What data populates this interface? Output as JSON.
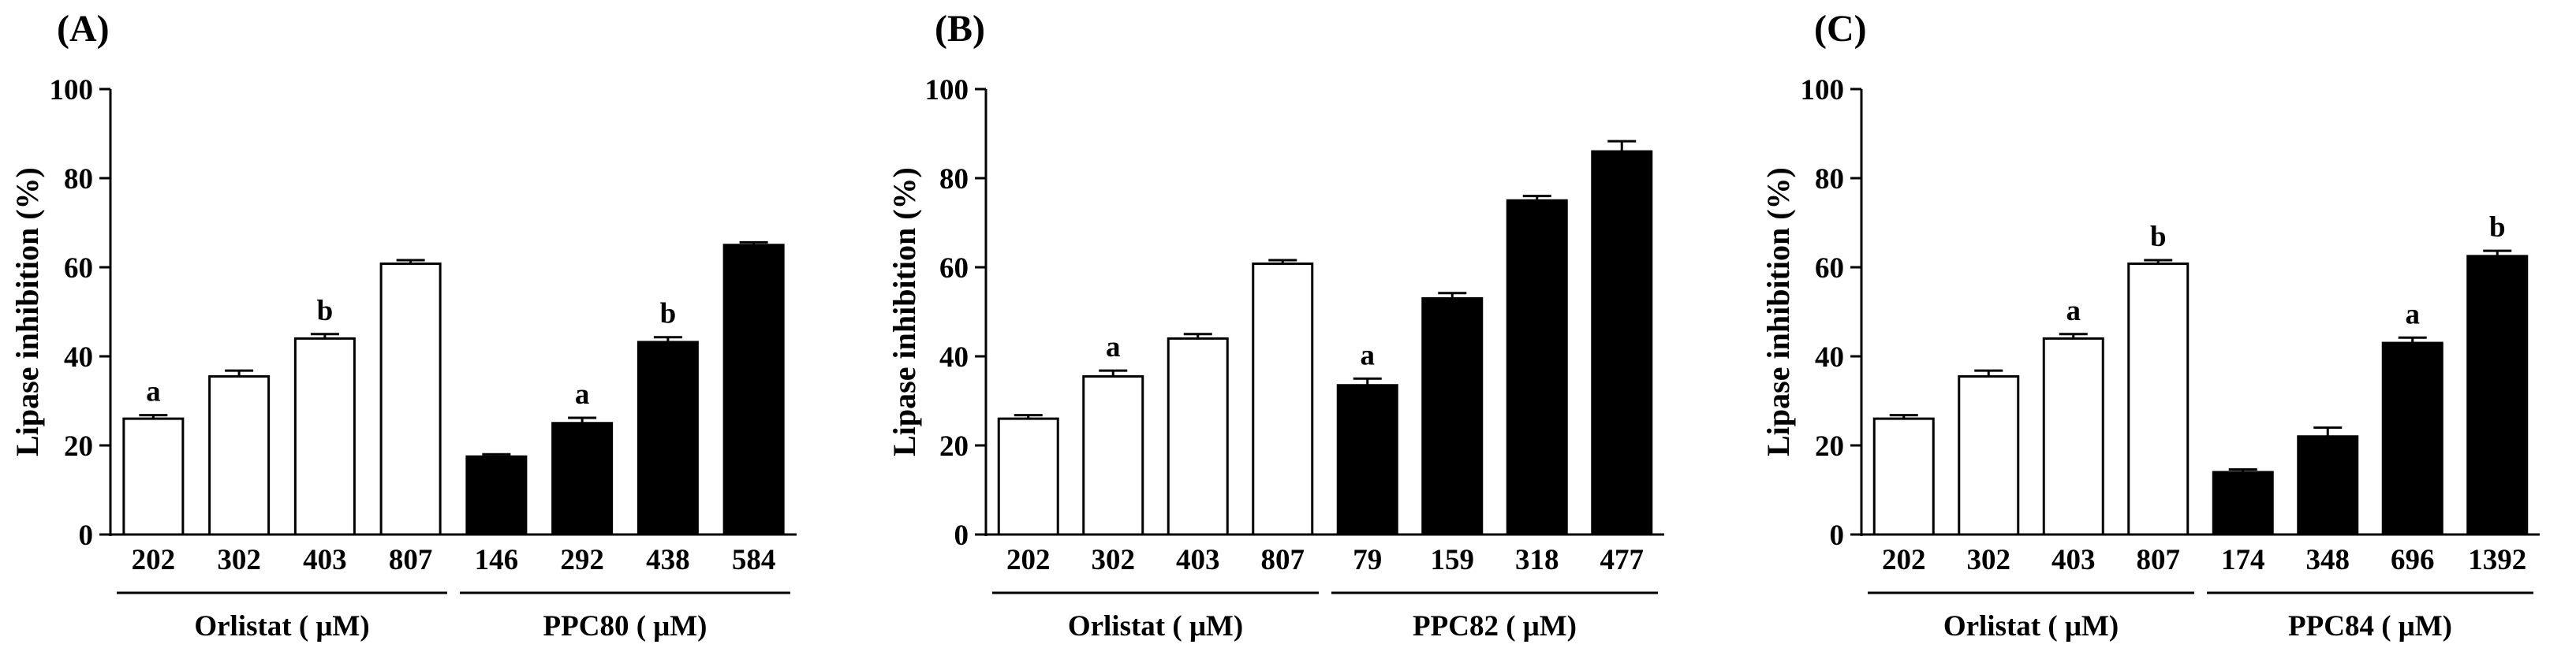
{
  "colors": {
    "open_bar": "#ffffff",
    "filled_bar": "#000000",
    "stroke": "#000000"
  },
  "chart_data": [
    {
      "type": "bar",
      "panel_label": "(A)",
      "ylabel": "Lipase inhibition (%)",
      "ylim": [
        0,
        100
      ],
      "yticks": [
        "0",
        "20",
        "40",
        "60",
        "80",
        "100"
      ],
      "categories": [
        "202",
        "302",
        "403",
        "807",
        "146",
        "292",
        "438",
        "584"
      ],
      "values": [
        26,
        35.5,
        44,
        60.8,
        17.5,
        25,
        43.2,
        65
      ],
      "errors": [
        0.8,
        1.3,
        1.0,
        0.8,
        0.5,
        1.2,
        1.1,
        0.6
      ],
      "significance": [
        "a",
        "",
        "b",
        "",
        "",
        "a",
        "b",
        ""
      ],
      "fill": [
        "open",
        "open",
        "open",
        "open",
        "filled",
        "filled",
        "filled",
        "filled"
      ],
      "groups": [
        {
          "label": "Orlistat ( μM)",
          "start": 0,
          "end": 3
        },
        {
          "label": "PPC80 ( μM)",
          "start": 4,
          "end": 7
        }
      ]
    },
    {
      "type": "bar",
      "panel_label": "(B)",
      "ylabel": "Lipase inhibition (%)",
      "ylim": [
        0,
        100
      ],
      "yticks": [
        "0",
        "20",
        "40",
        "60",
        "80",
        "100"
      ],
      "categories": [
        "202",
        "302",
        "403",
        "807",
        "79",
        "159",
        "318",
        "477"
      ],
      "values": [
        26,
        35.5,
        44,
        60.8,
        33.5,
        53,
        75,
        86
      ],
      "errors": [
        0.8,
        1.3,
        1.0,
        0.8,
        1.5,
        1.2,
        1.0,
        2.3
      ],
      "significance": [
        "",
        "a",
        "",
        "",
        "a",
        "",
        "",
        ""
      ],
      "fill": [
        "open",
        "open",
        "open",
        "open",
        "filled",
        "filled",
        "filled",
        "filled"
      ],
      "groups": [
        {
          "label": "Orlistat ( μM)",
          "start": 0,
          "end": 3
        },
        {
          "label": "PPC82 ( μM)",
          "start": 4,
          "end": 7
        }
      ]
    },
    {
      "type": "bar",
      "panel_label": "(C)",
      "ylabel": "Lipase inhibition (%)",
      "ylim": [
        0,
        100
      ],
      "yticks": [
        "0",
        "20",
        "40",
        "60",
        "80",
        "100"
      ],
      "categories": [
        "202",
        "302",
        "403",
        "807",
        "174",
        "348",
        "696",
        "1392"
      ],
      "values": [
        26,
        35.5,
        44,
        60.8,
        14,
        22,
        43,
        62.5
      ],
      "errors": [
        0.8,
        1.3,
        1.0,
        0.8,
        0.6,
        2.0,
        1.2,
        1.2
      ],
      "significance": [
        "",
        "",
        "a",
        "b",
        "",
        "",
        "a",
        "b"
      ],
      "fill": [
        "open",
        "open",
        "open",
        "open",
        "filled",
        "filled",
        "filled",
        "filled"
      ],
      "groups": [
        {
          "label": "Orlistat ( μM)",
          "start": 0,
          "end": 3
        },
        {
          "label": "PPC84 ( μM)",
          "start": 4,
          "end": 7
        }
      ]
    }
  ]
}
